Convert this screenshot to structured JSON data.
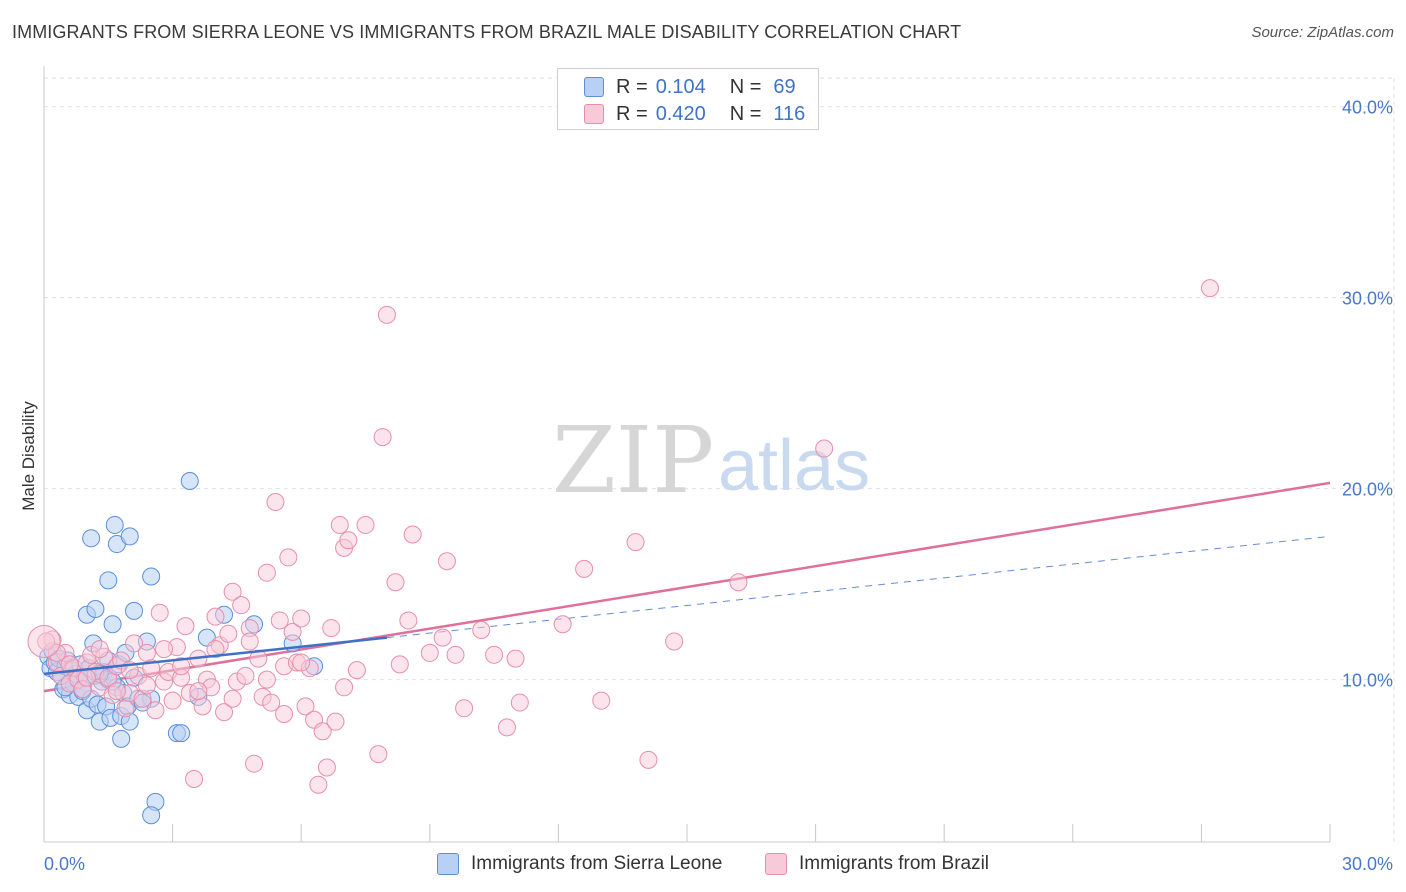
{
  "header": {
    "title": "IMMIGRANTS FROM SIERRA LEONE VS IMMIGRANTS FROM BRAZIL MALE DISABILITY CORRELATION CHART",
    "source": "Source: ZipAtlas.com"
  },
  "watermark": {
    "zip": "ZIP",
    "atlas": "atlas"
  },
  "legend": {
    "series1": {
      "r_label": "R =",
      "r_value": "0.104",
      "n_label": "N =",
      "n_value": "69"
    },
    "series2": {
      "r_label": "R =",
      "r_value": "0.420",
      "n_label": "N =",
      "n_value": "116"
    }
  },
  "colors": {
    "series1_fill": "#b7d0f4",
    "series1_stroke": "#5b8fd8",
    "series1_line": "#3f6fc6",
    "series2_fill": "#f8c9d8",
    "series2_stroke": "#e68fac",
    "series2_line": "#e0709a",
    "tick_text": "#4a78c8"
  },
  "chart_data": {
    "type": "scatter",
    "title": "IMMIGRANTS FROM SIERRA LEONE VS IMMIGRANTS FROM BRAZIL MALE DISABILITY CORRELATION CHART",
    "xlabel": "",
    "ylabel": "Male Disability",
    "xlim": [
      0,
      30
    ],
    "ylim": [
      1.5,
      41.5
    ],
    "x_tick_labels": [
      {
        "value": 0,
        "label": "0.0%"
      },
      {
        "value": 30,
        "label": "30.0%"
      }
    ],
    "y_ticks": [
      {
        "value": 10,
        "label": "10.0%"
      },
      {
        "value": 20,
        "label": "20.0%"
      },
      {
        "value": 30,
        "label": "30.0%"
      },
      {
        "value": 40,
        "label": "40.0%"
      }
    ],
    "series": [
      {
        "name": "Immigrants from Sierra Leone",
        "r": 0.104,
        "n": 69,
        "trend_solid": [
          [
            0,
            10.3
          ],
          [
            8,
            12.2
          ]
        ],
        "trend_dashed": [
          [
            8,
            12.2
          ],
          [
            30,
            17.5
          ]
        ],
        "points": [
          [
            0.1,
            11.2
          ],
          [
            0.15,
            10.6
          ],
          [
            0.2,
            11.5
          ],
          [
            0.25,
            10.9
          ],
          [
            0.3,
            10.4
          ],
          [
            0.35,
            11.1
          ],
          [
            0.4,
            10.2
          ],
          [
            0.45,
            9.5
          ],
          [
            0.5,
            10.7
          ],
          [
            0.55,
            11.0
          ],
          [
            0.6,
            9.2
          ],
          [
            0.65,
            10.5
          ],
          [
            0.7,
            9.8
          ],
          [
            0.75,
            10.3
          ],
          [
            0.8,
            9.1
          ],
          [
            0.85,
            10.8
          ],
          [
            0.9,
            9.4
          ],
          [
            0.95,
            10.1
          ],
          [
            1.0,
            8.4
          ],
          [
            1.05,
            10.6
          ],
          [
            1.1,
            9.0
          ],
          [
            1.15,
            11.9
          ],
          [
            1.2,
            10.2
          ],
          [
            1.25,
            8.7
          ],
          [
            1.3,
            7.8
          ],
          [
            1.35,
            9.9
          ],
          [
            1.4,
            10.4
          ],
          [
            1.45,
            8.6
          ],
          [
            1.5,
            10.0
          ],
          [
            1.55,
            8.0
          ],
          [
            1.6,
            12.9
          ],
          [
            1.7,
            9.6
          ],
          [
            1.75,
            10.8
          ],
          [
            1.8,
            8.1
          ],
          [
            1.85,
            9.3
          ],
          [
            1.9,
            11.4
          ],
          [
            1.95,
            8.6
          ],
          [
            2.0,
            7.8
          ],
          [
            2.1,
            10.1
          ],
          [
            2.2,
            9.0
          ],
          [
            1.0,
            13.4
          ],
          [
            1.1,
            17.4
          ],
          [
            1.2,
            13.7
          ],
          [
            1.5,
            11.0
          ],
          [
            1.6,
            9.9
          ],
          [
            1.7,
            17.1
          ],
          [
            1.5,
            15.2
          ],
          [
            1.65,
            18.1
          ],
          [
            2.0,
            17.5
          ],
          [
            2.5,
            15.4
          ],
          [
            2.1,
            13.6
          ],
          [
            2.4,
            12.0
          ],
          [
            2.5,
            9.0
          ],
          [
            2.6,
            3.6
          ],
          [
            2.5,
            2.9
          ],
          [
            3.1,
            7.2
          ],
          [
            3.2,
            7.2
          ],
          [
            3.6,
            9.1
          ],
          [
            3.8,
            12.2
          ],
          [
            4.2,
            13.4
          ],
          [
            3.4,
            20.4
          ],
          [
            4.9,
            12.9
          ],
          [
            5.8,
            11.9
          ],
          [
            6.3,
            10.7
          ],
          [
            2.3,
            8.8
          ],
          [
            1.8,
            6.9
          ],
          [
            0.5,
            9.6
          ],
          [
            0.9,
            9.5
          ],
          [
            1.3,
            10.3
          ]
        ]
      },
      {
        "name": "Immigrants from Brazil",
        "r": 0.42,
        "n": 116,
        "trend": [
          [
            0,
            9.4
          ],
          [
            30,
            20.3
          ]
        ],
        "points": [
          [
            0.2,
            12.1
          ],
          [
            0.3,
            10.9
          ],
          [
            0.4,
            10.2
          ],
          [
            0.5,
            11.4
          ],
          [
            0.6,
            9.8
          ],
          [
            0.7,
            10.6
          ],
          [
            0.8,
            10.0
          ],
          [
            0.9,
            9.5
          ],
          [
            1.0,
            10.9
          ],
          [
            1.1,
            11.3
          ],
          [
            1.2,
            10.4
          ],
          [
            1.3,
            9.6
          ],
          [
            1.4,
            11.2
          ],
          [
            1.5,
            10.1
          ],
          [
            1.6,
            9.2
          ],
          [
            1.7,
            10.7
          ],
          [
            1.8,
            11.0
          ],
          [
            1.9,
            8.5
          ],
          [
            2.0,
            9.3
          ],
          [
            2.1,
            11.9
          ],
          [
            2.2,
            10.2
          ],
          [
            2.3,
            9.0
          ],
          [
            2.4,
            11.4
          ],
          [
            2.5,
            10.6
          ],
          [
            2.6,
            8.4
          ],
          [
            2.7,
            13.5
          ],
          [
            2.8,
            9.9
          ],
          [
            2.9,
            10.4
          ],
          [
            3.0,
            8.9
          ],
          [
            3.1,
            11.7
          ],
          [
            3.2,
            10.1
          ],
          [
            3.3,
            12.8
          ],
          [
            3.4,
            9.3
          ],
          [
            3.5,
            4.8
          ],
          [
            3.6,
            11.1
          ],
          [
            3.7,
            8.6
          ],
          [
            3.8,
            10.0
          ],
          [
            3.9,
            9.6
          ],
          [
            4.0,
            13.3
          ],
          [
            4.1,
            11.8
          ],
          [
            4.2,
            8.3
          ],
          [
            4.3,
            12.4
          ],
          [
            4.4,
            14.6
          ],
          [
            4.5,
            9.9
          ],
          [
            4.6,
            13.9
          ],
          [
            4.7,
            10.2
          ],
          [
            4.8,
            12.7
          ],
          [
            4.9,
            5.6
          ],
          [
            5.0,
            11.1
          ],
          [
            5.1,
            9.1
          ],
          [
            5.2,
            15.6
          ],
          [
            5.3,
            8.8
          ],
          [
            5.4,
            19.3
          ],
          [
            5.5,
            13.1
          ],
          [
            5.6,
            10.7
          ],
          [
            5.7,
            16.4
          ],
          [
            5.8,
            12.5
          ],
          [
            5.9,
            10.9
          ],
          [
            6.0,
            13.2
          ],
          [
            6.1,
            8.6
          ],
          [
            6.2,
            10.6
          ],
          [
            6.3,
            7.9
          ],
          [
            6.4,
            4.5
          ],
          [
            6.5,
            7.3
          ],
          [
            6.6,
            5.4
          ],
          [
            6.7,
            12.7
          ],
          [
            6.8,
            7.8
          ],
          [
            6.9,
            18.1
          ],
          [
            7.0,
            16.9
          ],
          [
            7.1,
            17.3
          ],
          [
            7.3,
            10.5
          ],
          [
            7.5,
            18.1
          ],
          [
            7.8,
            6.1
          ],
          [
            8.0,
            29.1
          ],
          [
            7.9,
            22.7
          ],
          [
            8.2,
            15.1
          ],
          [
            8.5,
            13.1
          ],
          [
            8.6,
            17.6
          ],
          [
            9.0,
            11.4
          ],
          [
            9.3,
            12.2
          ],
          [
            9.4,
            16.2
          ],
          [
            9.6,
            11.3
          ],
          [
            9.8,
            8.5
          ],
          [
            10.2,
            12.6
          ],
          [
            10.5,
            11.3
          ],
          [
            10.8,
            7.5
          ],
          [
            11.0,
            11.1
          ],
          [
            11.1,
            8.8
          ],
          [
            12.1,
            12.9
          ],
          [
            12.6,
            15.8
          ],
          [
            13.0,
            8.9
          ],
          [
            13.8,
            17.2
          ],
          [
            14.1,
            5.8
          ],
          [
            14.7,
            12.0
          ],
          [
            16.2,
            15.1
          ],
          [
            18.2,
            22.1
          ],
          [
            27.2,
            30.5
          ],
          [
            0.3,
            11.4
          ],
          [
            0.6,
            10.8
          ],
          [
            1.0,
            10.1
          ],
          [
            1.3,
            11.6
          ],
          [
            1.7,
            9.4
          ],
          [
            2.0,
            10.5
          ],
          [
            2.4,
            9.7
          ],
          [
            2.8,
            11.6
          ],
          [
            3.2,
            10.7
          ],
          [
            3.6,
            9.4
          ],
          [
            4.0,
            11.6
          ],
          [
            4.4,
            9.0
          ],
          [
            4.8,
            12.0
          ],
          [
            5.2,
            10.0
          ],
          [
            5.6,
            8.2
          ],
          [
            6.0,
            10.9
          ],
          [
            7.0,
            9.6
          ],
          [
            8.3,
            10.8
          ],
          [
            0.05,
            12.0
          ]
        ]
      }
    ],
    "legend_position": "top-center",
    "bottom_legend": [
      "Immigrants from Sierra Leone",
      "Immigrants from Brazil"
    ]
  }
}
